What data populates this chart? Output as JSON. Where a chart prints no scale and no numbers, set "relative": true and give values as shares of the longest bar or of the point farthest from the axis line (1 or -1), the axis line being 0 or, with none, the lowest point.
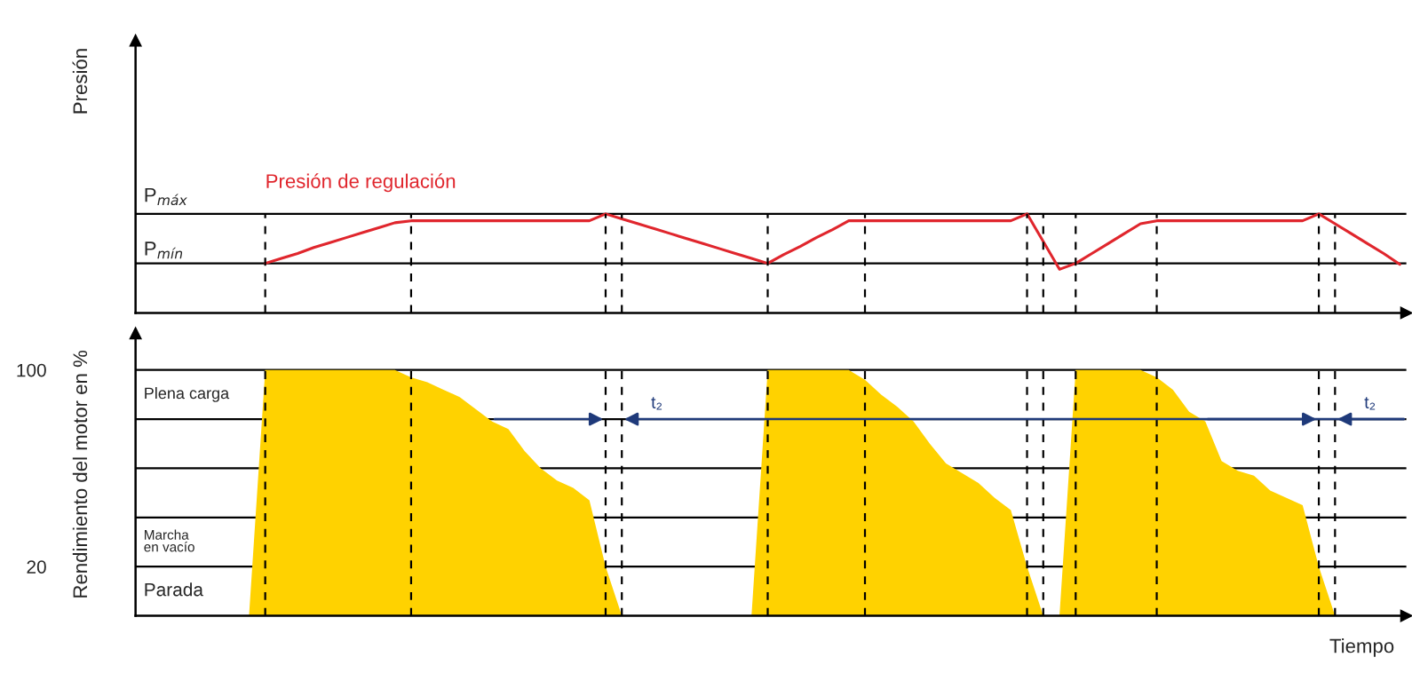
{
  "chart_data": [
    {
      "type": "line",
      "ylabel": "Presión",
      "relative": true,
      "tick_labels": false,
      "grid": "x",
      "legend": false,
      "line_style": "solid",
      "marker": "none",
      "categories": [
        null,
        null,
        null,
        null,
        null,
        null,
        null,
        null,
        null,
        null,
        null,
        null,
        null,
        null,
        null,
        null,
        null,
        null,
        null,
        null,
        null,
        null,
        null,
        null,
        null,
        null,
        null,
        null,
        null,
        null,
        null,
        null,
        null,
        null,
        null,
        null,
        null,
        null,
        null,
        null,
        null,
        null,
        null,
        null,
        null,
        null,
        null,
        null,
        null,
        null,
        null,
        null,
        null,
        null,
        null,
        null,
        null,
        null,
        null,
        null,
        null,
        null,
        null,
        null,
        null,
        null,
        null,
        null,
        null,
        null,
        null,
        null,
        null,
        null,
        null,
        null,
        null,
        null,
        null
      ],
      "series": [
        {
          "name": "Presión de regulación",
          "color": "#e0262d",
          "values": [
            null,
            null,
            null,
            null,
            null,
            null,
            null,
            null,
            0.5,
            0.55,
            0.6,
            0.66,
            0.71,
            0.76,
            0.81,
            0.86,
            0.91,
            0.93,
            0.93,
            0.93,
            0.93,
            0.93,
            0.93,
            0.93,
            0.93,
            0.93,
            0.93,
            0.93,
            0.93,
            1.0,
            0.95,
            0.9,
            0.85,
            0.8,
            0.75,
            0.7,
            0.65,
            0.6,
            0.55,
            0.5,
            0.59,
            0.67,
            0.76,
            0.84,
            0.93,
            0.93,
            0.93,
            0.93,
            0.93,
            0.93,
            0.93,
            0.93,
            0.93,
            0.93,
            0.93,
            1.0,
            0.72,
            0.44,
            0.5,
            0.6,
            0.7,
            0.8,
            0.9,
            0.93,
            0.93,
            0.93,
            0.93,
            0.93,
            0.93,
            0.93,
            0.93,
            0.93,
            0.93,
            1.0,
            0.9,
            0.8,
            0.7,
            0.6,
            0.49
          ]
        }
      ],
      "ref_lines": [
        {
          "axis": "y",
          "value": 1.0,
          "label": "P$_{máx}$",
          "color": "#000000",
          "line_style": "solid"
        },
        {
          "axis": "y",
          "value": 0.5,
          "label": "P$_{mín}$",
          "color": "#000000",
          "line_style": "solid"
        }
      ]
    },
    {
      "type": "area",
      "ylabel": "Rendimiento del motor en %",
      "xlabel": "Tiempo",
      "ylim": [
        0,
        115
      ],
      "yticks": [
        20,
        {
          "value": 40,
          "label": null
        },
        {
          "value": 60,
          "label": null
        },
        {
          "value": 80,
          "label": null
        },
        100
      ],
      "tick_labels": "y",
      "grid": true,
      "legend": false,
      "categories": [
        null,
        null,
        null,
        null,
        null,
        null,
        null,
        null,
        null,
        null,
        null,
        null,
        null,
        null,
        null,
        null,
        null,
        null,
        null,
        null,
        null,
        null,
        null,
        null,
        null,
        null,
        null,
        null,
        null,
        null,
        null,
        null,
        null,
        null,
        null,
        null,
        null,
        null,
        null,
        null,
        null,
        null,
        null,
        null,
        null,
        null,
        null,
        null,
        null,
        null,
        null,
        null,
        null,
        null,
        null,
        null,
        null,
        null,
        null,
        null,
        null,
        null,
        null,
        null,
        null,
        null,
        null,
        null,
        null,
        null,
        null,
        null,
        null,
        null,
        null,
        null,
        null,
        null,
        null
      ],
      "series": [
        {
          "color": "#ffd200",
          "values": [
            0,
            0,
            0,
            0,
            0,
            0,
            0,
            0,
            100,
            100,
            100,
            100,
            100,
            100,
            100,
            100,
            100,
            97,
            95,
            92,
            89,
            84,
            79,
            76,
            67,
            60,
            55,
            52,
            47,
            20,
            0,
            0,
            0,
            0,
            0,
            0,
            0,
            0,
            0,
            100,
            100,
            100,
            100,
            100,
            100,
            96,
            90,
            85,
            79,
            70,
            62,
            58,
            54,
            48,
            43,
            20,
            0,
            0,
            100,
            100,
            100,
            100,
            100,
            97,
            92,
            83,
            79,
            63,
            59,
            57,
            51,
            48,
            45,
            20,
            0,
            0,
            0,
            0,
            0
          ]
        }
      ],
      "annotations": [
        "Plena carga",
        "Marcha\nen vacío",
        "Parada",
        "t₂",
        "t₂"
      ]
    }
  ]
}
